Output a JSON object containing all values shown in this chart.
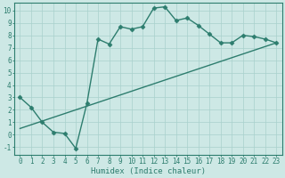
{
  "xlabel": "Humidex (Indice chaleur)",
  "bg_color": "#cde8e5",
  "line_color": "#2d7d6e",
  "grid_color": "#a8d0cc",
  "xlim": [
    -0.5,
    23.5
  ],
  "ylim": [
    -1.6,
    10.6
  ],
  "xticks": [
    0,
    1,
    2,
    3,
    4,
    5,
    6,
    7,
    8,
    9,
    10,
    11,
    12,
    13,
    14,
    15,
    16,
    17,
    18,
    19,
    20,
    21,
    22,
    23
  ],
  "yticks": [
    -1,
    0,
    1,
    2,
    3,
    4,
    5,
    6,
    7,
    8,
    9,
    10
  ],
  "curve1_x": [
    0,
    1,
    2,
    3,
    4,
    5,
    6,
    7,
    8,
    9,
    10,
    11,
    12,
    13,
    14,
    15,
    16,
    17,
    18,
    19,
    20,
    21,
    22,
    23
  ],
  "curve1_y": [
    3.0,
    2.2,
    1.0,
    0.2,
    0.1,
    -1.1,
    2.5,
    7.7,
    7.3,
    8.7,
    8.5,
    8.7,
    10.2,
    10.3,
    9.2,
    9.4,
    8.8,
    8.1,
    7.4,
    7.4,
    8.0,
    7.9,
    7.7,
    7.4
  ],
  "curve2_x": [
    0,
    23
  ],
  "curve2_y": [
    0.5,
    7.4
  ],
  "marker": "D",
  "markersize": 2.5,
  "linewidth": 1.0,
  "tick_fontsize": 5.5,
  "xlabel_fontsize": 6.5
}
